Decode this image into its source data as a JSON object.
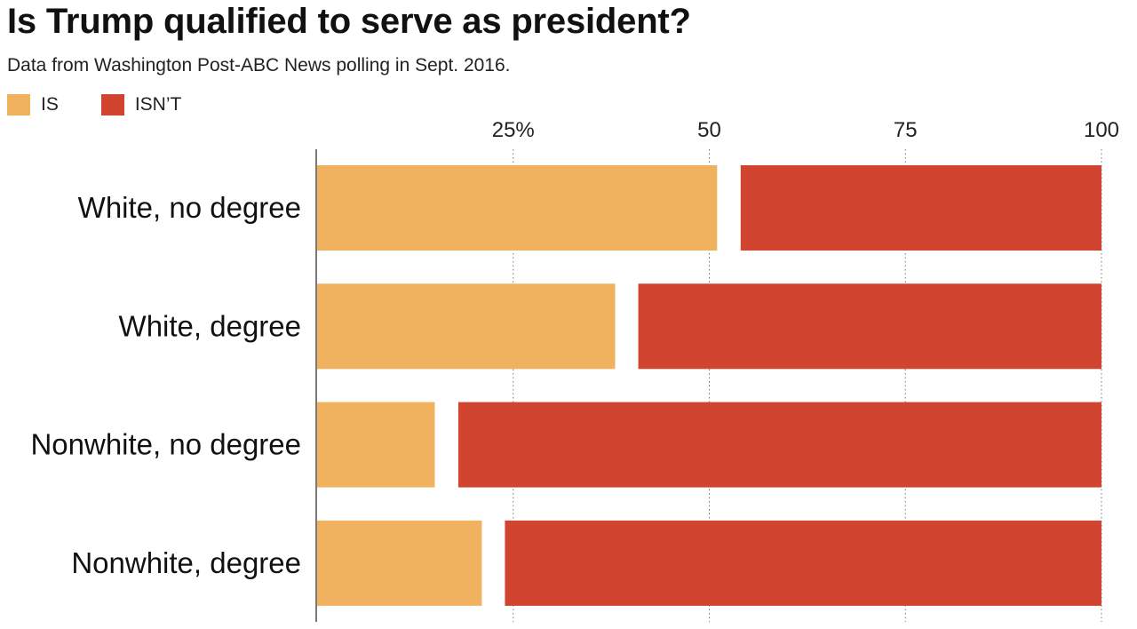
{
  "chart_data": {
    "type": "bar",
    "orientation": "horizontal",
    "stacked": true,
    "title": "Is Trump qualified to serve as president?",
    "subtitle": "Data from Washington Post-ABC News polling in Sept. 2016.",
    "categories": [
      "White, no degree",
      "White, degree",
      "Nonwhite, no degree",
      "Nonwhite, degree"
    ],
    "series": [
      {
        "name": "IS",
        "color": "#f0b25f",
        "values": [
          51,
          38,
          15,
          21
        ]
      },
      {
        "name": "ISN’T",
        "color": "#d14430",
        "values": [
          46,
          62,
          82,
          79
        ]
      }
    ],
    "xlim": [
      0,
      100
    ],
    "xticks": [
      25,
      50,
      75,
      100
    ],
    "xtick_labels": [
      "25%",
      "50",
      "75",
      "100"
    ],
    "grid": "vertical dotted",
    "legend_position": "top-left"
  }
}
